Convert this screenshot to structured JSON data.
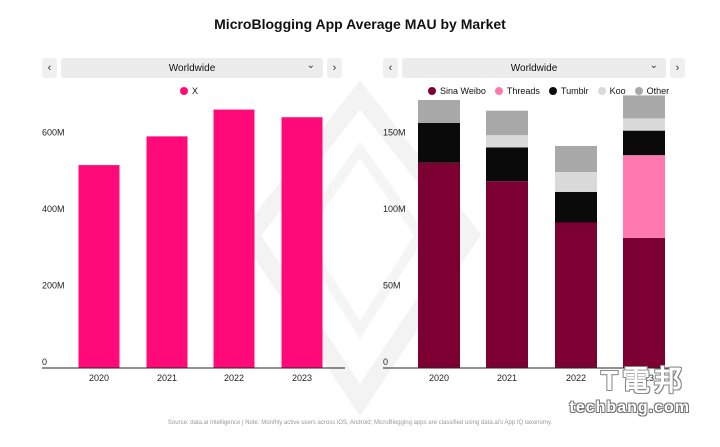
{
  "title": "MicroBlogging App Average MAU by Market",
  "footer": "Source: data.ai Intelligence | Note: Monthly active users across iOS, Android; MicroBlogging apps are classified using data.ai's App IQ taxonomy.",
  "watermark": {
    "glyphs": "T電邦",
    "text": "techbang.com"
  },
  "colors": {
    "X": "#ff0a78",
    "Sina Weibo": "#7d0033",
    "Threads": "#ff78b0",
    "Tumblr": "#0a0a0a",
    "Koo": "#dadada",
    "Other": "#a8a8a8"
  },
  "left_panel": {
    "selector": {
      "prev": "‹",
      "value": "Worldwide",
      "next": "›",
      "chevron": "⌄"
    },
    "legend": [
      {
        "name": "X",
        "color": "#ff0a78"
      }
    ]
  },
  "right_panel": {
    "selector": {
      "prev": "‹",
      "value": "Worldwide",
      "next": "›",
      "chevron": "⌄"
    },
    "legend": [
      {
        "name": "Sina Weibo",
        "color": "#7d0033"
      },
      {
        "name": "Threads",
        "color": "#ff78b0"
      },
      {
        "name": "Tumblr",
        "color": "#0a0a0a"
      },
      {
        "name": "Koo",
        "color": "#dadada"
      },
      {
        "name": "Other",
        "color": "#a8a8a8"
      }
    ]
  },
  "chart_data": [
    {
      "type": "bar",
      "title": "",
      "categories": [
        "2020",
        "2021",
        "2022",
        "2023"
      ],
      "series": [
        {
          "name": "X",
          "values": [
            530,
            605,
            675,
            655
          ]
        }
      ],
      "ylim": [
        0,
        700
      ],
      "yticks": [
        0,
        200,
        400,
        600
      ],
      "ytick_labels": [
        "0",
        "200M",
        "400M",
        "600M"
      ],
      "grid": false,
      "legend": "top-center"
    },
    {
      "type": "bar",
      "stacked": true,
      "title": "",
      "categories": [
        "2020",
        "2021",
        "2022",
        "2023"
      ],
      "series": [
        {
          "name": "Sina Weibo",
          "values": [
            134,
            122,
            95,
            85
          ]
        },
        {
          "name": "Threads",
          "values": [
            0,
            0,
            0,
            54
          ]
        },
        {
          "name": "Tumblr",
          "values": [
            26,
            22,
            20,
            16
          ]
        },
        {
          "name": "Koo",
          "values": [
            0,
            8,
            13,
            8
          ]
        },
        {
          "name": "Other",
          "values": [
            15,
            16,
            17,
            15
          ]
        }
      ],
      "ylim": [
        0,
        175
      ],
      "yticks": [
        0,
        50,
        100,
        150
      ],
      "ytick_labels": [
        "0",
        "50M",
        "100M",
        "150M"
      ],
      "grid": false,
      "legend": "top-left"
    }
  ]
}
